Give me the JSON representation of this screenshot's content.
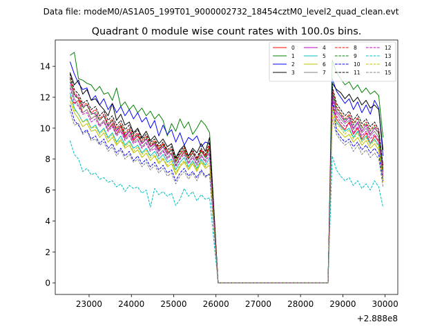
{
  "figure": {
    "suptitle": "Data file: modeM0/AS1A05_199T01_9000002732_18454cztM0_level2_quad_clean.evt"
  },
  "chart_data": {
    "type": "line",
    "title": "Quadrant 0 module wise count rates with 100.0s bins.",
    "xlabel": "",
    "ylabel": "",
    "offset_text": "+2.888e8",
    "xlim": [
      22200,
      30300
    ],
    "ylim": [
      -0.75,
      15.7
    ],
    "xticks": [
      23000,
      24000,
      25000,
      26000,
      27000,
      28000,
      29000,
      30000
    ],
    "xtick_labels": [
      "23000",
      "24000",
      "25000",
      "26000",
      "27000",
      "28000",
      "29000",
      "30000"
    ],
    "yticks": [
      0,
      2,
      4,
      6,
      8,
      10,
      12,
      14
    ],
    "ytick_labels": [
      "0",
      "2",
      "4",
      "6",
      "8",
      "10",
      "12",
      "14"
    ],
    "grid": false,
    "legend_position": "top-right",
    "bin_seconds": 100,
    "gap_range": [
      26050,
      28700
    ],
    "x_segment1": [
      22550,
      22650,
      22750,
      22850,
      22950,
      23050,
      23150,
      23250,
      23350,
      23450,
      23550,
      23650,
      23750,
      23850,
      23950,
      24050,
      24150,
      24250,
      24350,
      24450,
      24550,
      24650,
      24750,
      24850,
      24950,
      25050,
      25150,
      25250,
      25350,
      25450,
      25550,
      25650,
      25750,
      25850
    ],
    "x_gap": [
      26050,
      28650
    ],
    "x_segment2": [
      28750,
      28850,
      28950,
      29050,
      29150,
      29250,
      29350,
      29450,
      29550,
      29650,
      29750,
      29850,
      29950
    ],
    "series": [
      {
        "name": "0",
        "color": "#ff0000",
        "dash": "solid",
        "seg1": [
          12.0,
          11.6,
          11.8,
          11.0,
          11.2,
          10.6,
          10.8,
          10.2,
          10.5,
          9.9,
          10.3,
          9.6,
          10.1,
          9.4,
          9.8,
          9.2,
          9.5,
          9.0,
          9.3,
          8.8,
          9.1,
          8.6,
          9.0,
          8.5,
          8.3,
          7.6,
          8.1,
          8.5,
          8.0,
          8.4,
          7.9,
          8.6,
          8.2,
          8.8
        ],
        "seg2": [
          11.6,
          10.6,
          10.2,
          9.9,
          10.4,
          9.6,
          10.0,
          9.3,
          9.7,
          9.0,
          9.5,
          9.1,
          7.6
        ]
      },
      {
        "name": "1",
        "color": "#008000",
        "dash": "solid",
        "seg1": [
          14.7,
          14.9,
          13.2,
          13.1,
          12.9,
          12.8,
          12.4,
          12.7,
          12.2,
          12.3,
          11.8,
          12.6,
          11.4,
          11.7,
          11.2,
          11.5,
          11.0,
          11.3,
          10.8,
          11.1,
          10.6,
          10.9,
          10.5,
          9.5,
          10.3,
          9.8,
          10.6,
          10.0,
          10.4,
          9.6,
          10.0,
          10.5,
          10.2,
          9.7
        ],
        "seg2": [
          14.4,
          13.6,
          13.2,
          12.8,
          13.0,
          12.5,
          12.8,
          12.3,
          12.6,
          12.2,
          12.4,
          12.1,
          9.4
        ]
      },
      {
        "name": "2",
        "color": "#0000ff",
        "dash": "solid",
        "seg1": [
          14.3,
          13.5,
          12.9,
          12.5,
          12.6,
          11.8,
          12.1,
          11.5,
          11.9,
          11.2,
          11.6,
          11.0,
          11.4,
          10.8,
          11.2,
          10.6,
          11.0,
          10.4,
          10.7,
          10.0,
          10.5,
          9.5,
          10.2,
          9.6,
          9.9,
          9.1,
          9.7,
          8.9,
          9.4,
          9.2,
          9.5,
          8.8,
          9.1,
          9.0
        ],
        "seg2": [
          13.2,
          12.4,
          12.0,
          11.6,
          11.9,
          11.2,
          11.7,
          11.0,
          11.5,
          10.9,
          11.8,
          11.3,
          8.2
        ]
      },
      {
        "name": "3",
        "color": "#000000",
        "dash": "solid",
        "seg1": [
          13.6,
          12.8,
          13.1,
          12.2,
          12.5,
          11.8,
          11.9,
          11.5,
          11.2,
          10.8,
          11.6,
          10.5,
          10.9,
          10.2,
          10.4,
          9.7,
          10.0,
          9.4,
          9.8,
          9.2,
          9.5,
          9.0,
          9.3,
          8.8,
          9.0,
          8.1,
          8.6,
          8.9,
          8.2,
          8.7,
          8.4,
          9.0,
          8.5,
          9.4
        ],
        "seg2": [
          12.9,
          12.5,
          12.3,
          11.9,
          12.2,
          11.7,
          12.0,
          11.5,
          11.8,
          11.3,
          11.5,
          11.2,
          8.6
        ]
      },
      {
        "name": "4",
        "color": "#bf00bf",
        "dash": "solid",
        "seg1": [
          13.0,
          12.2,
          11.9,
          11.4,
          11.5,
          11.0,
          10.9,
          10.5,
          10.8,
          10.1,
          10.5,
          9.8,
          10.2,
          9.5,
          9.8,
          9.3,
          9.6,
          9.0,
          9.3,
          8.8,
          9.0,
          8.5,
          8.8,
          8.3,
          8.6,
          7.8,
          8.3,
          8.6,
          8.0,
          8.4,
          7.9,
          8.5,
          8.1,
          8.4
        ],
        "seg2": [
          12.3,
          11.1,
          10.8,
          10.4,
          10.7,
          10.0,
          10.4,
          9.8,
          10.2,
          9.6,
          10.0,
          9.7,
          7.2
        ]
      },
      {
        "name": "5",
        "color": "#00bfbf",
        "dash": "solid",
        "seg1": [
          12.3,
          11.3,
          10.9,
          10.4,
          10.6,
          10.0,
          10.2,
          9.7,
          10.0,
          9.4,
          9.7,
          9.1,
          9.5,
          8.9,
          9.2,
          8.7,
          8.9,
          8.4,
          8.7,
          8.2,
          8.5,
          8.0,
          8.3,
          7.8,
          8.0,
          7.3,
          7.8,
          8.1,
          7.5,
          7.9,
          7.4,
          8.0,
          7.6,
          8.1
        ],
        "seg2": [
          11.2,
          10.4,
          10.1,
          9.8,
          10.0,
          9.4,
          9.8,
          9.2,
          9.5,
          9.0,
          9.3,
          8.9,
          6.8
        ]
      },
      {
        "name": "6",
        "color": "#bfbf00",
        "dash": "solid",
        "seg1": [
          11.8,
          11.0,
          10.6,
          10.1,
          10.3,
          9.8,
          9.9,
          9.4,
          9.7,
          9.1,
          9.4,
          8.9,
          9.2,
          8.7,
          8.9,
          8.4,
          8.6,
          8.1,
          8.4,
          7.9,
          8.2,
          7.7,
          8.0,
          7.5,
          7.7,
          7.0,
          7.5,
          7.8,
          7.3,
          7.7,
          7.2,
          7.8,
          7.4,
          7.6
        ],
        "seg2": [
          10.9,
          10.0,
          9.7,
          9.4,
          9.6,
          9.1,
          9.4,
          8.9,
          9.2,
          8.7,
          9.0,
          8.6,
          6.5
        ]
      },
      {
        "name": "7",
        "color": "#808080",
        "dash": "solid",
        "seg1": [
          12.8,
          11.9,
          11.5,
          11.0,
          11.2,
          10.6,
          10.8,
          10.2,
          10.5,
          9.9,
          10.2,
          9.6,
          9.9,
          9.3,
          9.6,
          9.1,
          9.3,
          8.8,
          9.1,
          8.6,
          8.9,
          8.3,
          8.6,
          8.1,
          8.4,
          7.6,
          8.1,
          8.4,
          7.8,
          8.2,
          7.7,
          8.3,
          7.9,
          8.7
        ],
        "seg2": [
          12.1,
          11.0,
          10.6,
          10.3,
          10.5,
          9.9,
          10.3,
          9.7,
          10.0,
          9.5,
          9.8,
          9.4,
          7.0
        ]
      },
      {
        "name": "8",
        "color": "#ff0000",
        "dash": "dashed",
        "seg1": [
          13.3,
          12.3,
          12.0,
          11.5,
          11.6,
          11.0,
          11.2,
          10.6,
          10.9,
          10.3,
          10.6,
          10.0,
          10.3,
          9.7,
          10.0,
          9.5,
          9.7,
          9.2,
          9.5,
          9.0,
          9.2,
          8.7,
          9.0,
          8.5,
          8.7,
          7.9,
          8.4,
          8.7,
          8.1,
          8.5,
          8.0,
          8.6,
          8.2,
          8.9
        ],
        "seg2": [
          12.6,
          11.4,
          11.0,
          10.6,
          10.9,
          10.3,
          10.7,
          10.1,
          10.4,
          9.9,
          10.2,
          9.8,
          7.4
        ]
      },
      {
        "name": "9",
        "color": "#008000",
        "dash": "dashed",
        "seg1": [
          13.2,
          12.1,
          11.9,
          11.3,
          11.5,
          10.9,
          11.0,
          10.5,
          10.8,
          10.2,
          10.5,
          9.9,
          10.2,
          9.6,
          9.9,
          9.4,
          9.6,
          9.1,
          9.4,
          8.9,
          9.1,
          8.6,
          8.9,
          8.4,
          8.6,
          7.8,
          8.3,
          8.6,
          8.0,
          8.4,
          7.9,
          8.5,
          8.1,
          8.7
        ],
        "seg2": [
          12.4,
          11.3,
          10.9,
          10.5,
          10.8,
          10.2,
          10.6,
          10.0,
          10.3,
          9.8,
          10.1,
          9.6,
          7.3
        ]
      },
      {
        "name": "10",
        "color": "#0000ff",
        "dash": "dashed",
        "seg1": [
          11.5,
          10.5,
          10.2,
          9.7,
          9.9,
          9.3,
          9.5,
          9.0,
          9.3,
          8.7,
          9.0,
          8.4,
          8.7,
          8.2,
          8.5,
          7.9,
          8.2,
          7.7,
          8.0,
          7.5,
          7.8,
          7.3,
          7.6,
          7.1,
          7.3,
          6.6,
          7.1,
          7.4,
          6.9,
          7.2,
          6.8,
          7.3,
          6.9,
          7.0
        ],
        "seg2": [
          12.0,
          9.8,
          9.4,
          9.1,
          9.3,
          8.8,
          9.1,
          8.6,
          8.9,
          8.4,
          8.7,
          8.3,
          6.6
        ]
      },
      {
        "name": "11",
        "color": "#000000",
        "dash": "dashed",
        "seg1": [
          13.5,
          12.5,
          12.2,
          11.6,
          11.8,
          11.2,
          11.4,
          10.8,
          11.1,
          10.5,
          10.8,
          10.2,
          10.5,
          9.9,
          10.2,
          9.6,
          9.9,
          9.3,
          9.6,
          9.1,
          9.3,
          8.8,
          9.1,
          8.6,
          8.8,
          8.0,
          8.5,
          8.8,
          8.2,
          8.6,
          8.1,
          8.7,
          8.3,
          9.1
        ],
        "seg2": [
          12.7,
          11.6,
          11.2,
          10.8,
          11.1,
          10.5,
          10.9,
          10.3,
          10.6,
          10.1,
          10.4,
          9.9,
          7.6
        ]
      },
      {
        "name": "12",
        "color": "#bf00bf",
        "dash": "dashed",
        "seg1": [
          12.6,
          11.7,
          11.4,
          10.9,
          11.0,
          10.4,
          10.6,
          10.1,
          10.4,
          9.8,
          10.1,
          9.5,
          9.8,
          9.2,
          9.5,
          9.0,
          9.2,
          8.7,
          9.0,
          8.5,
          8.7,
          8.2,
          8.5,
          8.0,
          8.3,
          7.5,
          8.0,
          8.3,
          7.7,
          8.1,
          7.6,
          8.2,
          7.8,
          8.3
        ],
        "seg2": [
          11.9,
          10.8,
          10.4,
          10.1,
          10.3,
          9.7,
          10.1,
          9.5,
          9.8,
          9.3,
          9.6,
          9.2,
          6.9
        ]
      },
      {
        "name": "13",
        "color": "#00bfbf",
        "dash": "dashed",
        "seg1": [
          9.2,
          8.3,
          8.0,
          7.2,
          7.4,
          7.0,
          7.1,
          6.7,
          6.8,
          6.5,
          6.6,
          6.2,
          6.4,
          5.9,
          6.3,
          6.1,
          6.2,
          5.8,
          6.0,
          4.9,
          6.1,
          5.7,
          5.9,
          5.6,
          5.8,
          5.0,
          5.4,
          6.1,
          5.6,
          5.9,
          5.3,
          5.7,
          5.4,
          5.5
        ],
        "seg2": [
          8.2,
          7.3,
          6.9,
          6.6,
          6.8,
          6.3,
          6.6,
          6.1,
          6.4,
          6.0,
          6.6,
          6.2,
          4.9
        ]
      },
      {
        "name": "14",
        "color": "#bfbf00",
        "dash": "dashed",
        "seg1": [
          12.1,
          11.2,
          10.9,
          10.4,
          10.5,
          10.0,
          10.1,
          9.6,
          9.9,
          9.3,
          9.6,
          9.0,
          9.3,
          8.8,
          9.1,
          8.5,
          8.8,
          8.3,
          8.6,
          8.1,
          8.3,
          7.8,
          8.1,
          7.6,
          7.9,
          7.1,
          7.6,
          7.9,
          7.4,
          7.8,
          7.3,
          7.9,
          7.5,
          7.8
        ],
        "seg2": [
          11.4,
          10.3,
          10.0,
          9.6,
          9.9,
          9.3,
          9.7,
          9.1,
          9.4,
          8.9,
          9.2,
          8.8,
          6.7
        ]
      },
      {
        "name": "15",
        "color": "#808080",
        "dash": "dashed",
        "seg1": [
          11.1,
          10.2,
          10.3,
          9.6,
          9.8,
          9.2,
          9.3,
          8.9,
          9.1,
          8.5,
          8.8,
          8.2,
          8.6,
          8.0,
          8.3,
          7.8,
          8.0,
          7.5,
          7.8,
          7.3,
          7.6,
          7.1,
          7.4,
          6.9,
          7.1,
          6.4,
          6.9,
          7.2,
          6.7,
          7.1,
          6.6,
          7.2,
          6.8,
          7.1
        ],
        "seg2": [
          10.6,
          9.6,
          9.2,
          8.9,
          9.1,
          8.5,
          8.9,
          8.3,
          8.6,
          8.1,
          8.4,
          8.0,
          6.2
        ]
      }
    ]
  }
}
